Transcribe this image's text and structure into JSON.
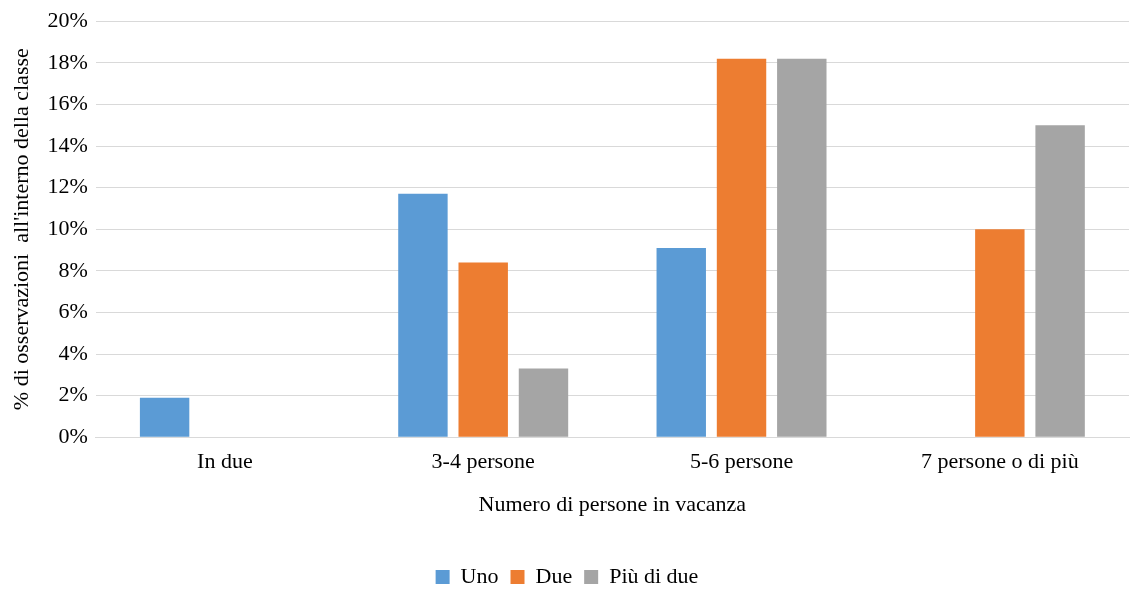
{
  "chart_data": {
    "type": "bar",
    "xlabel": "Numero di persone in vacanza",
    "ylabel": "% di osservazioni  all'interno della classe",
    "categories": [
      "In due",
      "3-4 persone",
      "5-6 persone",
      "7 persone o di più"
    ],
    "series": [
      {
        "name": "Uno",
        "color": "#5b9bd5",
        "values": [
          1.9,
          11.7,
          9.1,
          0
        ]
      },
      {
        "name": "Due",
        "color": "#ed7d31",
        "values": [
          0,
          8.4,
          18.2,
          10
        ]
      },
      {
        "name": "Più di due",
        "color": "#a5a5a5",
        "values": [
          0,
          3.3,
          18.2,
          15
        ]
      }
    ],
    "ylim": [
      0,
      20
    ],
    "yticks": [
      {
        "value": 0,
        "label": "0%"
      },
      {
        "value": 2,
        "label": "2%"
      },
      {
        "value": 4,
        "label": "4%"
      },
      {
        "value": 6,
        "label": "6%"
      },
      {
        "value": 8,
        "label": "8%"
      },
      {
        "value": 10,
        "label": "10%"
      },
      {
        "value": 12,
        "label": "12%"
      },
      {
        "value": 14,
        "label": "14%"
      },
      {
        "value": 16,
        "label": "16%"
      },
      {
        "value": 18,
        "label": "18%"
      },
      {
        "value": 20,
        "label": "20%"
      }
    ],
    "grid": "y",
    "legend": "bottom"
  }
}
